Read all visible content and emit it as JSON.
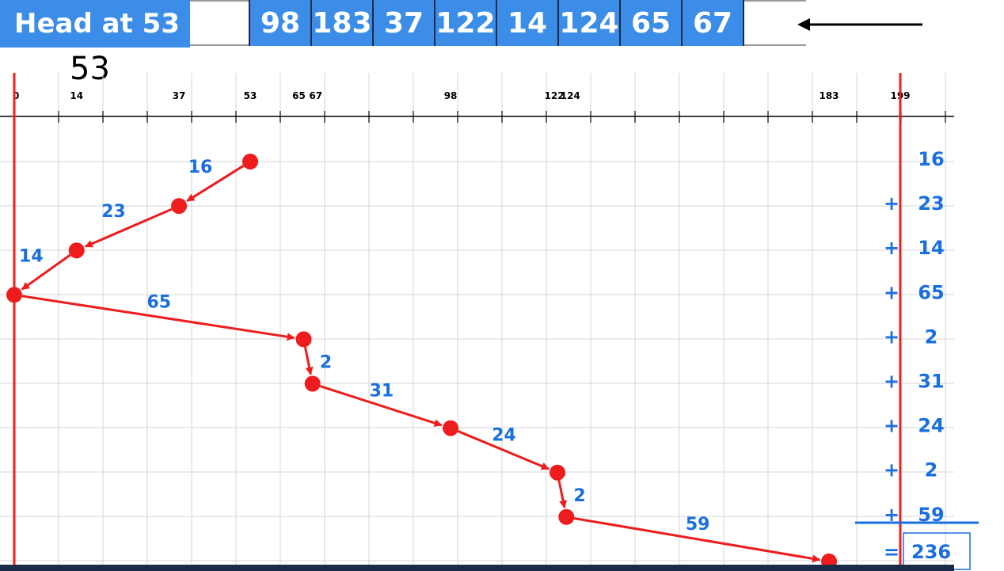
{
  "header": {
    "head_label": "Head at 53",
    "queue": [
      "98",
      "183",
      "37",
      "122",
      "14",
      "124",
      "65",
      "67"
    ]
  },
  "head_position_label": "53",
  "axis": {
    "ticks": [
      {
        "value": 0,
        "label": "0"
      },
      {
        "value": 14,
        "label": "14"
      },
      {
        "value": 37,
        "label": "37"
      },
      {
        "value": 53,
        "label": "53"
      },
      {
        "value": 65,
        "label": "65"
      },
      {
        "value": 67,
        "label": "67"
      },
      {
        "value": 98,
        "label": "98"
      },
      {
        "value": 122,
        "label": "122"
      },
      {
        "value": 124,
        "label": "124"
      },
      {
        "value": 183,
        "label": "183"
      },
      {
        "value": 199,
        "label": "199"
      }
    ]
  },
  "path": {
    "visits": [
      53,
      37,
      14,
      0,
      65,
      67,
      98,
      122,
      124,
      183
    ],
    "distances": [
      "16",
      "23",
      "14",
      "65",
      "2",
      "31",
      "24",
      "2",
      "59"
    ]
  },
  "sum": {
    "plus_sign": "+",
    "equals_sign": "=",
    "terms": [
      "16",
      "23",
      "14",
      "65",
      "2",
      "31",
      "24",
      "2",
      "59"
    ],
    "total": "236"
  },
  "colors": {
    "accent_blue": "#3b8de8",
    "path_red": "#ee1c1c",
    "label_blue": "#1a6fe0"
  }
}
